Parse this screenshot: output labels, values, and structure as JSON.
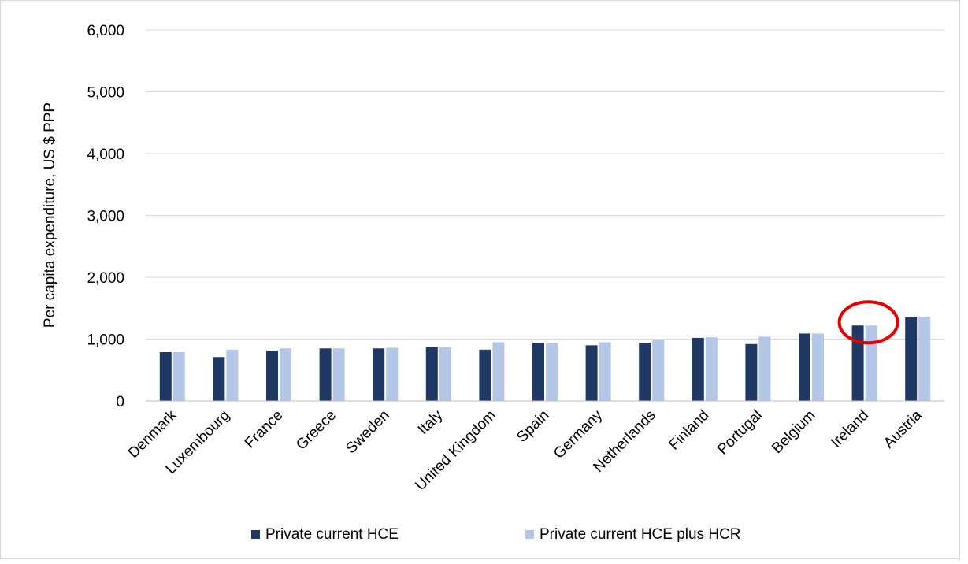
{
  "chart_data": {
    "type": "bar",
    "title": "",
    "xlabel": "",
    "ylabel": "Per capita expenditure, US $ PPP",
    "ylim": [
      0,
      6000
    ],
    "yticks": [
      "0",
      "1,000",
      "2,000",
      "3,000",
      "4,000",
      "5,000",
      "6,000"
    ],
    "grid": true,
    "legend_position": "bottom",
    "categories": [
      "Denmark",
      "Luxembourg",
      "France",
      "Greece",
      "Sweden",
      "Italy",
      "United Kingdom",
      "Spain",
      "Germany",
      "Netherlands",
      "Finland",
      "Portugal",
      "Belgium",
      "Ireland",
      "Austria"
    ],
    "series": [
      {
        "name": "Private current HCE",
        "color": "#1f3864",
        "values": [
          790,
          710,
          810,
          850,
          850,
          870,
          830,
          940,
          900,
          940,
          1020,
          920,
          1090,
          1220,
          1360
        ]
      },
      {
        "name": "Private current HCE plus HCR",
        "color": "#b4c7e7",
        "values": [
          790,
          830,
          850,
          850,
          860,
          870,
          950,
          940,
          950,
          990,
          1030,
          1040,
          1090,
          1220,
          1360
        ]
      }
    ],
    "highlight": {
      "category": "Ireland",
      "shape": "ellipse",
      "color": "#e00000"
    }
  }
}
